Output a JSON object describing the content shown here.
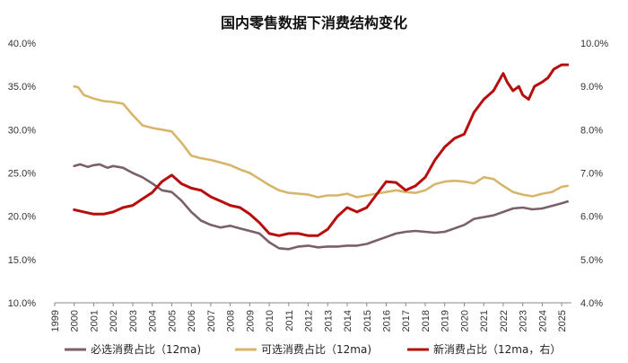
{
  "chart_data": {
    "type": "line",
    "title": "国内零售数据下消费结构变化",
    "x_ticks": [
      "1999",
      "2000",
      "2001",
      "2002",
      "2003",
      "2004",
      "2005",
      "2006",
      "2007",
      "2008",
      "2009",
      "2010",
      "2011",
      "2012",
      "2013",
      "2014",
      "2015",
      "2016",
      "2017",
      "2018",
      "2019",
      "2020",
      "2021",
      "2022",
      "2023",
      "2024",
      "2025"
    ],
    "xlim": [
      1999,
      2025.5
    ],
    "y_left": {
      "ticks": [
        "10.0%",
        "15.0%",
        "20.0%",
        "25.0%",
        "30.0%",
        "35.0%",
        "40.0%"
      ],
      "range": [
        10,
        40
      ]
    },
    "y_right": {
      "ticks": [
        "4.0%",
        "5.0%",
        "6.0%",
        "7.0%",
        "8.0%",
        "9.0%",
        "10.0%"
      ],
      "range": [
        4,
        10
      ]
    },
    "grid": false,
    "legend_position": "bottom",
    "colors": {
      "necessary": "#7a6168",
      "optional": "#d7b66b",
      "new": "#b80d0d",
      "axis": "#888888"
    },
    "series": [
      {
        "name": "必选消费占比（12ma)",
        "axis": "left",
        "color": "#7a6168",
        "points": [
          [
            2000,
            25.8
          ],
          [
            2000.3,
            26.0
          ],
          [
            2000.7,
            25.7
          ],
          [
            2001,
            25.9
          ],
          [
            2001.3,
            26.0
          ],
          [
            2001.7,
            25.6
          ],
          [
            2002,
            25.8
          ],
          [
            2002.5,
            25.6
          ],
          [
            2003,
            25.0
          ],
          [
            2003.5,
            24.5
          ],
          [
            2004,
            23.8
          ],
          [
            2004.5,
            23.0
          ],
          [
            2005,
            22.8
          ],
          [
            2005.5,
            21.8
          ],
          [
            2006,
            20.5
          ],
          [
            2006.5,
            19.5
          ],
          [
            2007,
            19.0
          ],
          [
            2007.5,
            18.7
          ],
          [
            2008,
            18.9
          ],
          [
            2008.5,
            18.6
          ],
          [
            2009,
            18.3
          ],
          [
            2009.5,
            18.0
          ],
          [
            2010,
            17.0
          ],
          [
            2010.5,
            16.3
          ],
          [
            2011,
            16.2
          ],
          [
            2011.5,
            16.5
          ],
          [
            2012,
            16.6
          ],
          [
            2012.5,
            16.4
          ],
          [
            2013,
            16.5
          ],
          [
            2013.5,
            16.5
          ],
          [
            2014,
            16.6
          ],
          [
            2014.5,
            16.6
          ],
          [
            2015,
            16.8
          ],
          [
            2015.5,
            17.2
          ],
          [
            2016,
            17.6
          ],
          [
            2016.5,
            18.0
          ],
          [
            2017,
            18.2
          ],
          [
            2017.5,
            18.3
          ],
          [
            2018,
            18.2
          ],
          [
            2018.5,
            18.1
          ],
          [
            2019,
            18.2
          ],
          [
            2019.5,
            18.6
          ],
          [
            2020,
            19.0
          ],
          [
            2020.5,
            19.7
          ],
          [
            2021,
            19.9
          ],
          [
            2021.5,
            20.1
          ],
          [
            2022,
            20.5
          ],
          [
            2022.5,
            20.9
          ],
          [
            2023,
            21.0
          ],
          [
            2023.5,
            20.8
          ],
          [
            2024,
            20.9
          ],
          [
            2024.5,
            21.2
          ],
          [
            2025,
            21.5
          ],
          [
            2025.3,
            21.7
          ]
        ]
      },
      {
        "name": "可选消费占比（12ma)",
        "axis": "left",
        "color": "#d7b66b",
        "points": [
          [
            2000,
            35.0
          ],
          [
            2000.2,
            34.9
          ],
          [
            2000.5,
            34.0
          ],
          [
            2001,
            33.6
          ],
          [
            2001.5,
            33.3
          ],
          [
            2002,
            33.2
          ],
          [
            2002.5,
            33.0
          ],
          [
            2003,
            31.7
          ],
          [
            2003.5,
            30.5
          ],
          [
            2004,
            30.2
          ],
          [
            2004.5,
            30.0
          ],
          [
            2005,
            29.8
          ],
          [
            2005.5,
            28.5
          ],
          [
            2006,
            27.0
          ],
          [
            2006.5,
            26.7
          ],
          [
            2007,
            26.5
          ],
          [
            2007.5,
            26.2
          ],
          [
            2008,
            25.9
          ],
          [
            2008.5,
            25.4
          ],
          [
            2009,
            25.0
          ],
          [
            2009.5,
            24.3
          ],
          [
            2010,
            23.6
          ],
          [
            2010.5,
            23.0
          ],
          [
            2011,
            22.7
          ],
          [
            2011.5,
            22.6
          ],
          [
            2012,
            22.5
          ],
          [
            2012.5,
            22.2
          ],
          [
            2013,
            22.4
          ],
          [
            2013.5,
            22.4
          ],
          [
            2014,
            22.6
          ],
          [
            2014.5,
            22.2
          ],
          [
            2015,
            22.4
          ],
          [
            2015.5,
            22.6
          ],
          [
            2016,
            22.8
          ],
          [
            2016.5,
            23.0
          ],
          [
            2017,
            22.8
          ],
          [
            2017.5,
            22.7
          ],
          [
            2018,
            23.0
          ],
          [
            2018.5,
            23.7
          ],
          [
            2019,
            24.0
          ],
          [
            2019.5,
            24.1
          ],
          [
            2020,
            24.0
          ],
          [
            2020.5,
            23.8
          ],
          [
            2021,
            24.5
          ],
          [
            2021.5,
            24.3
          ],
          [
            2022,
            23.5
          ],
          [
            2022.5,
            22.8
          ],
          [
            2023,
            22.5
          ],
          [
            2023.5,
            22.3
          ],
          [
            2024,
            22.6
          ],
          [
            2024.5,
            22.8
          ],
          [
            2025,
            23.4
          ],
          [
            2025.3,
            23.5
          ]
        ]
      },
      {
        "name": "新消费占比（12ma，右）",
        "axis": "right",
        "color": "#b80d0d",
        "points": [
          [
            2000,
            6.15
          ],
          [
            2000.5,
            6.1
          ],
          [
            2001,
            6.05
          ],
          [
            2001.5,
            6.05
          ],
          [
            2002,
            6.1
          ],
          [
            2002.5,
            6.2
          ],
          [
            2003,
            6.25
          ],
          [
            2003.5,
            6.4
          ],
          [
            2004,
            6.55
          ],
          [
            2004.5,
            6.8
          ],
          [
            2005,
            6.95
          ],
          [
            2005.5,
            6.75
          ],
          [
            2006,
            6.65
          ],
          [
            2006.5,
            6.6
          ],
          [
            2007,
            6.45
          ],
          [
            2007.5,
            6.35
          ],
          [
            2008,
            6.25
          ],
          [
            2008.5,
            6.2
          ],
          [
            2009,
            6.05
          ],
          [
            2009.5,
            5.85
          ],
          [
            2010,
            5.6
          ],
          [
            2010.5,
            5.55
          ],
          [
            2011,
            5.6
          ],
          [
            2011.5,
            5.6
          ],
          [
            2012,
            5.55
          ],
          [
            2012.5,
            5.55
          ],
          [
            2013,
            5.7
          ],
          [
            2013.5,
            6.0
          ],
          [
            2014,
            6.2
          ],
          [
            2014.5,
            6.1
          ],
          [
            2015,
            6.2
          ],
          [
            2015.5,
            6.5
          ],
          [
            2016,
            6.8
          ],
          [
            2016.5,
            6.78
          ],
          [
            2017,
            6.6
          ],
          [
            2017.5,
            6.7
          ],
          [
            2018,
            6.9
          ],
          [
            2018.5,
            7.3
          ],
          [
            2019,
            7.6
          ],
          [
            2019.5,
            7.8
          ],
          [
            2020,
            7.9
          ],
          [
            2020.5,
            8.4
          ],
          [
            2021,
            8.7
          ],
          [
            2021.5,
            8.9
          ],
          [
            2022,
            9.3
          ],
          [
            2022.2,
            9.1
          ],
          [
            2022.5,
            8.9
          ],
          [
            2022.8,
            9.0
          ],
          [
            2023,
            8.8
          ],
          [
            2023.3,
            8.7
          ],
          [
            2023.6,
            9.0
          ],
          [
            2024,
            9.1
          ],
          [
            2024.3,
            9.2
          ],
          [
            2024.6,
            9.4
          ],
          [
            2025,
            9.5
          ],
          [
            2025.3,
            9.5
          ]
        ]
      }
    ]
  }
}
